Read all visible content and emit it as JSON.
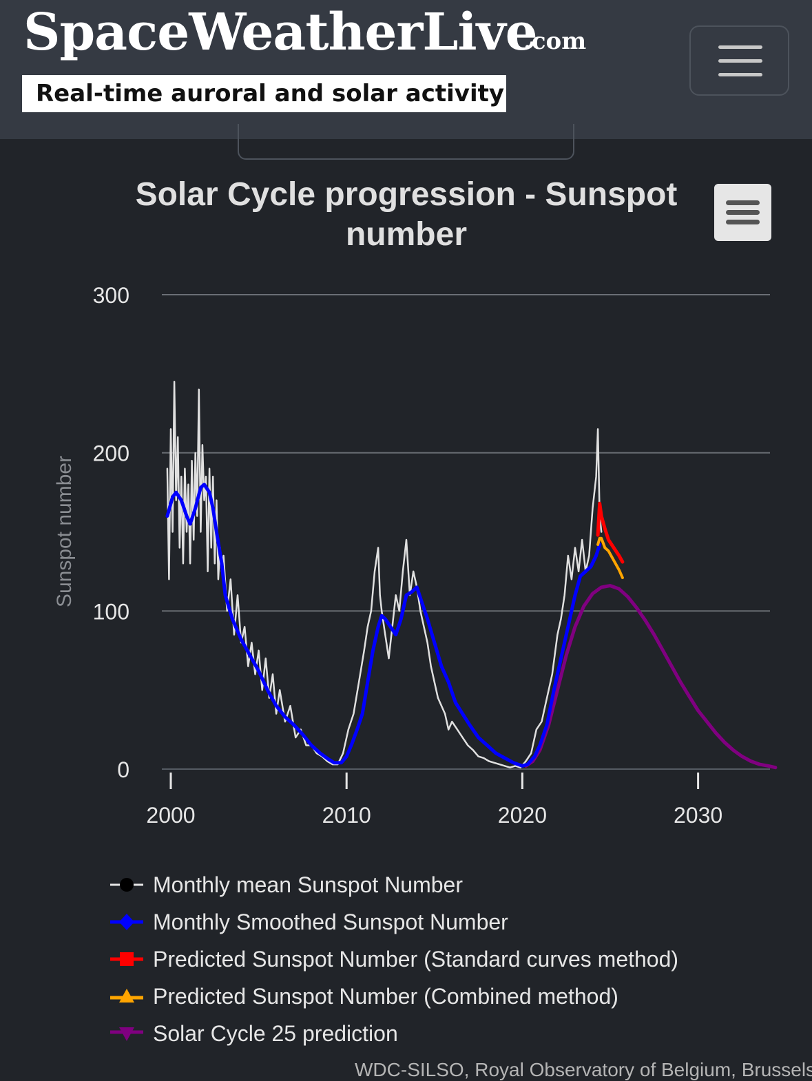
{
  "header": {
    "logo_text": "SpaceWeatherLive",
    "logo_suffix": ".com",
    "tagline": "Real-time auroral and solar activity",
    "menu_icon": "hamburger-menu-icon"
  },
  "chart_data": {
    "type": "line",
    "title": "Solar Cycle progression - Sunspot number",
    "xlabel": "",
    "ylabel": "Sunspot number",
    "xlim": [
      2000,
      2034.6
    ],
    "ylim": [
      0,
      300
    ],
    "x_ticks": [
      "2000",
      "2010",
      "2020",
      "2030"
    ],
    "y_ticks": [
      "0",
      "100",
      "200",
      "300"
    ],
    "grid": true,
    "legend_position": "bottom",
    "export_menu_icon": "hamburger-menu-icon",
    "series": [
      {
        "name": "Monthly mean Sunspot Number",
        "color": "#e0e0e0",
        "x": [
          1999.8,
          1999.9,
          2000.0,
          2000.1,
          2000.2,
          2000.3,
          2000.4,
          2000.5,
          2000.6,
          2000.7,
          2000.8,
          2000.9,
          2001.0,
          2001.1,
          2001.2,
          2001.3,
          2001.4,
          2001.5,
          2001.6,
          2001.7,
          2001.8,
          2001.9,
          2002.0,
          2002.1,
          2002.2,
          2002.3,
          2002.4,
          2002.5,
          2002.6,
          2002.7,
          2002.8,
          2002.9,
          2003.0,
          2003.2,
          2003.4,
          2003.6,
          2003.8,
          2004.0,
          2004.2,
          2004.4,
          2004.6,
          2004.8,
          2005.0,
          2005.2,
          2005.4,
          2005.6,
          2005.8,
          2006.0,
          2006.2,
          2006.5,
          2006.8,
          2007.1,
          2007.4,
          2007.7,
          2008.0,
          2008.3,
          2008.6,
          2008.9,
          2009.2,
          2009.5,
          2009.8,
          2010.1,
          2010.4,
          2010.7,
          2011.0,
          2011.2,
          2011.4,
          2011.6,
          2011.8,
          2011.9,
          2012.0,
          2012.2,
          2012.4,
          2012.6,
          2012.8,
          2013.0,
          2013.2,
          2013.4,
          2013.6,
          2013.8,
          2014.0,
          2014.2,
          2014.4,
          2014.6,
          2014.8,
          2015.0,
          2015.2,
          2015.4,
          2015.6,
          2015.8,
          2016.0,
          2016.3,
          2016.6,
          2016.9,
          2017.2,
          2017.5,
          2017.8,
          2018.1,
          2018.4,
          2018.7,
          2019.0,
          2019.3,
          2019.6,
          2019.9,
          2020.2,
          2020.5,
          2020.8,
          2021.1,
          2021.4,
          2021.7,
          2022.0,
          2022.2,
          2022.4,
          2022.6,
          2022.8,
          2023.0,
          2023.2,
          2023.4,
          2023.6,
          2023.8,
          2024.0,
          2024.2,
          2024.3,
          2024.4,
          2024.5
        ],
        "y": [
          190,
          120,
          215,
          150,
          245,
          170,
          210,
          140,
          185,
          130,
          190,
          150,
          180,
          130,
          195,
          145,
          200,
          160,
          240,
          150,
          205,
          170,
          185,
          125,
          190,
          140,
          185,
          130,
          170,
          120,
          140,
          125,
          135,
          100,
          120,
          85,
          110,
          80,
          90,
          65,
          80,
          60,
          75,
          50,
          70,
          45,
          60,
          35,
          50,
          30,
          40,
          20,
          25,
          15,
          15,
          10,
          8,
          5,
          3,
          3,
          10,
          25,
          35,
          55,
          75,
          90,
          100,
          125,
          140,
          110,
          100,
          85,
          70,
          90,
          110,
          100,
          125,
          145,
          110,
          125,
          115,
          100,
          90,
          80,
          65,
          55,
          45,
          40,
          35,
          25,
          30,
          25,
          20,
          15,
          12,
          8,
          7,
          5,
          4,
          3,
          2,
          1,
          2,
          1,
          5,
          10,
          25,
          30,
          45,
          60,
          85,
          95,
          110,
          135,
          120,
          140,
          125,
          145,
          125,
          135,
          165,
          185,
          215,
          160,
          150
        ]
      },
      {
        "name": "Monthly Smoothed Sunspot Number",
        "color": "#0000ff",
        "x": [
          1999.8,
          2000.1,
          2000.3,
          2000.6,
          2000.9,
          2001.1,
          2001.4,
          2001.7,
          2001.9,
          2002.2,
          2002.4,
          2002.6,
          2002.9,
          2003.1,
          2003.5,
          2004.0,
          2004.5,
          2005.0,
          2005.5,
          2006.0,
          2006.5,
          2007.0,
          2007.5,
          2008.0,
          2008.5,
          2009.0,
          2009.3,
          2009.7,
          2010.0,
          2010.3,
          2010.6,
          2010.9,
          2011.2,
          2011.5,
          2011.8,
          2012.0,
          2012.2,
          2012.5,
          2012.8,
          2013.1,
          2013.4,
          2013.7,
          2014.0,
          2014.3,
          2014.6,
          2015.0,
          2015.4,
          2015.8,
          2016.2,
          2016.6,
          2017.0,
          2017.5,
          2018.0,
          2018.5,
          2019.0,
          2019.5,
          2020.0,
          2020.3,
          2020.7,
          2021.0,
          2021.4,
          2021.8,
          2022.2,
          2022.6,
          2023.0,
          2023.3,
          2023.6,
          2023.9,
          2024.2,
          2024.4
        ],
        "y": [
          160,
          172,
          175,
          170,
          160,
          155,
          165,
          178,
          180,
          175,
          165,
          150,
          130,
          110,
          95,
          82,
          72,
          62,
          50,
          40,
          33,
          28,
          22,
          15,
          10,
          6,
          4,
          4,
          8,
          16,
          25,
          35,
          55,
          75,
          90,
          97,
          95,
          90,
          85,
          95,
          110,
          112,
          115,
          105,
          95,
          80,
          65,
          55,
          42,
          35,
          28,
          20,
          15,
          10,
          7,
          4,
          2,
          3,
          8,
          15,
          28,
          50,
          70,
          90,
          110,
          122,
          125,
          128,
          135,
          142
        ]
      },
      {
        "name": "Predicted Sunspot Number (Standard curves method)",
        "color": "#ff0000",
        "x": [
          2024.3,
          2024.4,
          2024.5,
          2024.7,
          2024.9,
          2025.2,
          2025.5,
          2025.7
        ],
        "y": [
          148,
          168,
          160,
          152,
          145,
          140,
          135,
          131
        ]
      },
      {
        "name": "Predicted Sunspot Number (Combined method)",
        "color": "#ffa500",
        "x": [
          2024.3,
          2024.4,
          2024.5,
          2024.7,
          2024.9,
          2025.2,
          2025.5,
          2025.7
        ],
        "y": [
          142,
          146,
          146,
          140,
          138,
          132,
          126,
          121
        ]
      },
      {
        "name": "Solar Cycle 25 prediction",
        "color": "#800080",
        "x": [
          2020.2,
          2020.6,
          2021.0,
          2021.5,
          2022.0,
          2022.5,
          2023.0,
          2023.5,
          2024.0,
          2024.5,
          2025.0,
          2025.5,
          2026.0,
          2026.5,
          2027.0,
          2027.5,
          2028.0,
          2028.5,
          2029.0,
          2029.5,
          2030.0,
          2030.5,
          2031.0,
          2031.5,
          2032.0,
          2032.5,
          2033.0,
          2033.5,
          2034.0,
          2034.4
        ],
        "y": [
          2,
          5,
          12,
          28,
          50,
          72,
          90,
          103,
          111,
          115,
          116,
          114,
          109,
          102,
          94,
          85,
          75,
          65,
          55,
          46,
          37,
          30,
          23,
          17,
          12,
          8,
          5,
          3,
          2,
          1
        ]
      }
    ]
  },
  "legend": [
    {
      "label": "Monthly mean Sunspot Number",
      "color": "#000000",
      "marker": "circle"
    },
    {
      "label": "Monthly Smoothed Sunspot Number",
      "color": "#0000ff",
      "marker": "diamond"
    },
    {
      "label": "Predicted Sunspot Number (Standard curves method)",
      "color": "#ff0000",
      "marker": "square"
    },
    {
      "label": "Predicted Sunspot Number (Combined method)",
      "color": "#ffa500",
      "marker": "triangle"
    },
    {
      "label": "Solar Cycle 25 prediction",
      "color": "#800080",
      "marker": "triangle-down"
    }
  ],
  "credit": "WDC-SILSO, Royal Observatory of Belgium, Brussels"
}
